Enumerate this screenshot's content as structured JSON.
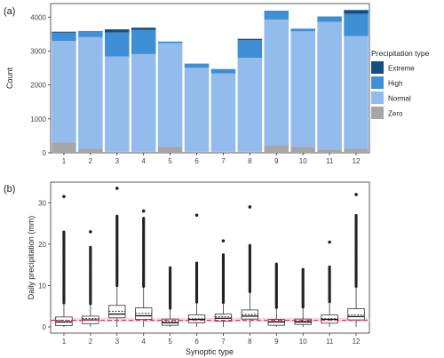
{
  "chart_data": [
    {
      "panel_label": "(a)",
      "type": "bar",
      "stacked": true,
      "categories": [
        "1",
        "2",
        "3",
        "4",
        "5",
        "6",
        "7",
        "8",
        "9",
        "10",
        "11",
        "12"
      ],
      "series": [
        {
          "name": "Zero",
          "color": "#a6a6a6",
          "values": [
            300,
            120,
            30,
            30,
            170,
            30,
            30,
            30,
            230,
            180,
            90,
            120
          ]
        },
        {
          "name": "Normal",
          "color": "#93bbeb",
          "values": [
            3000,
            3290,
            2810,
            2880,
            3060,
            2480,
            2310,
            2770,
            3700,
            3400,
            3770,
            3320
          ]
        },
        {
          "name": "High",
          "color": "#3f8fd6",
          "values": [
            240,
            170,
            710,
            710,
            50,
            120,
            130,
            520,
            260,
            80,
            160,
            660
          ]
        },
        {
          "name": "Extreme",
          "color": "#14507f",
          "values": [
            30,
            10,
            90,
            70,
            0,
            0,
            0,
            40,
            0,
            0,
            0,
            110
          ]
        }
      ],
      "ylabel": "Count",
      "xlabel": "",
      "yticks": [
        "0",
        "1000",
        "2000",
        "3000",
        "4000"
      ],
      "ylim": [
        0,
        4400
      ],
      "legend": {
        "title": "Precipitation type",
        "items": [
          "Extreme",
          "High",
          "Normal",
          "Zero"
        ],
        "placement": "right"
      }
    },
    {
      "panel_label": "(b)",
      "type": "box",
      "categories": [
        "1",
        "2",
        "3",
        "4",
        "5",
        "6",
        "7",
        "8",
        "9",
        "10",
        "11",
        "12"
      ],
      "boxes": [
        {
          "q1": 0.3,
          "median": 1.2,
          "q3": 2.4,
          "whisker_low": 0,
          "whisker_high": 5.5,
          "outlier_min": 5.8,
          "outlier_max": 23,
          "extra_outliers": [
            31.5
          ],
          "mean": 1.6
        },
        {
          "q1": 0.8,
          "median": 1.7,
          "q3": 2.6,
          "whisker_low": 0,
          "whisker_high": 5.3,
          "outlier_min": 5.6,
          "outlier_max": 19.5,
          "extra_outliers": [
            23
          ],
          "mean": 2.0
        },
        {
          "q1": 2.2,
          "median": 3.1,
          "q3": 5.2,
          "whisker_low": 0,
          "whisker_high": 9.7,
          "outlier_min": 10,
          "outlier_max": 27,
          "extra_outliers": [
            33.5
          ],
          "mean": 3.8
        },
        {
          "q1": 1.8,
          "median": 2.7,
          "q3": 4.6,
          "whisker_low": 0,
          "whisker_high": 9.5,
          "outlier_min": 9.8,
          "outlier_max": 26.5,
          "extra_outliers": [
            28
          ],
          "mean": 3.3
        },
        {
          "q1": 0.4,
          "median": 1.0,
          "q3": 1.9,
          "whisker_low": 0,
          "whisker_high": 4.2,
          "outlier_min": 4.5,
          "outlier_max": 14.5,
          "extra_outliers": [],
          "mean": 1.3
        },
        {
          "q1": 1.0,
          "median": 1.8,
          "q3": 2.9,
          "whisker_low": 0,
          "whisker_high": 5.7,
          "outlier_min": 6.0,
          "outlier_max": 15.5,
          "extra_outliers": [
            27
          ],
          "mean": 2.1
        },
        {
          "q1": 1.4,
          "median": 2.1,
          "q3": 3.1,
          "whisker_low": 0,
          "whisker_high": 5.6,
          "outlier_min": 5.9,
          "outlier_max": 17.5,
          "extra_outliers": [
            20.8
          ],
          "mean": 2.5
        },
        {
          "q1": 1.9,
          "median": 2.6,
          "q3": 4.1,
          "whisker_low": 0,
          "whisker_high": 8.2,
          "outlier_min": 8.5,
          "outlier_max": 20,
          "extra_outliers": [
            29
          ],
          "mean": 3.0
        },
        {
          "q1": 0.4,
          "median": 1.2,
          "q3": 1.8,
          "whisker_low": 0,
          "whisker_high": 4.4,
          "outlier_min": 4.7,
          "outlier_max": 15.5,
          "extra_outliers": [],
          "mean": 1.3
        },
        {
          "q1": 0.6,
          "median": 1.2,
          "q3": 1.9,
          "whisker_low": 0,
          "whisker_high": 4.5,
          "outlier_min": 4.8,
          "outlier_max": 14,
          "extra_outliers": [],
          "mean": 1.4
        },
        {
          "q1": 0.9,
          "median": 1.8,
          "q3": 2.9,
          "whisker_low": 0,
          "whisker_high": 5.8,
          "outlier_min": 6.1,
          "outlier_max": 14.5,
          "extra_outliers": [
            20.5
          ],
          "mean": 2.0
        },
        {
          "q1": 1.7,
          "median": 2.5,
          "q3": 4.4,
          "whisker_low": 0,
          "whisker_high": 9.5,
          "outlier_min": 9.8,
          "outlier_max": 27,
          "extra_outliers": [
            32
          ],
          "mean": 2.9
        }
      ],
      "reference_line": {
        "value": 1.6,
        "color": "#e0306f",
        "style": "dashed"
      },
      "reference_band": [
        1.3,
        2.2
      ],
      "ylabel": "Daily precipitation (mm)",
      "xlabel": "Synoptic type",
      "yticks": [
        "0",
        "10",
        "20",
        "30"
      ],
      "ylim": [
        -1.5,
        35
      ]
    }
  ]
}
